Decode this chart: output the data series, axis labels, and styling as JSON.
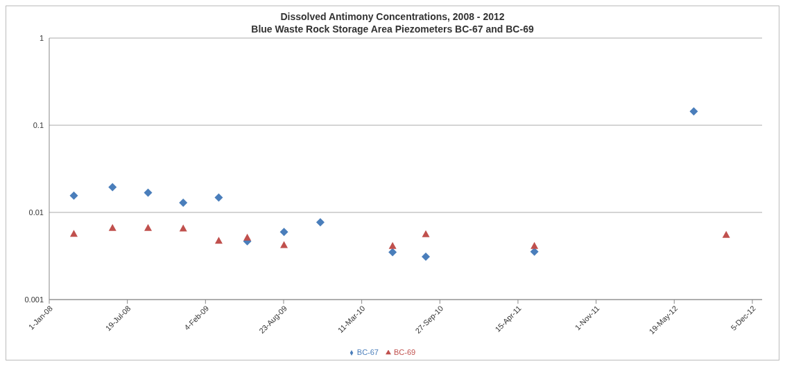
{
  "chart_data": {
    "type": "scatter",
    "title": "Dissolved Antimony Concentrations, 2008 - 2012",
    "subtitle": "Blue Waste Rock Storage Area Piezometers BC-67 and BC-69",
    "series": [
      {
        "name": "BC-67",
        "color": "#4a7ebb",
        "marker": "diamond",
        "x": [
          "2008-03-04",
          "2008-06-11",
          "2008-09-10",
          "2008-12-09",
          "2009-03-10",
          "2009-05-22",
          "2009-08-24",
          "2009-11-25",
          "2010-05-29",
          "2010-08-22",
          "2011-05-27",
          "2012-07-08"
        ],
        "values": [
          0.0156,
          0.0195,
          0.0168,
          0.0129,
          0.0148,
          0.00466,
          0.00596,
          0.0077,
          0.0035,
          0.0031,
          0.00355,
          0.144
        ]
      },
      {
        "name": "BC-69",
        "color": "#c0504d",
        "marker": "triangle",
        "x": [
          "2008-03-04",
          "2008-06-11",
          "2008-09-10",
          "2008-12-09",
          "2009-03-10",
          "2009-05-22",
          "2009-08-24",
          "2010-05-29",
          "2010-08-22",
          "2011-05-27",
          "2012-09-29"
        ],
        "values": [
          0.00565,
          0.0066,
          0.0066,
          0.0065,
          0.0047,
          0.0051,
          0.0042,
          0.0041,
          0.0056,
          0.0041,
          0.0055
        ]
      }
    ],
    "xlim": [
      "2008-01-01",
      "2012-12-30"
    ],
    "xticks": [
      {
        "value": "2008-01-01",
        "label": "1-Jan-08"
      },
      {
        "value": "2008-07-19",
        "label": "19-Jul-08"
      },
      {
        "value": "2009-02-04",
        "label": "4-Feb-09"
      },
      {
        "value": "2009-08-23",
        "label": "23-Aug-09"
      },
      {
        "value": "2010-03-11",
        "label": "11-Mar-10"
      },
      {
        "value": "2010-09-27",
        "label": "27-Sep-10"
      },
      {
        "value": "2011-04-15",
        "label": "15-Apr-11"
      },
      {
        "value": "2011-11-01",
        "label": "1-Nov-11"
      },
      {
        "value": "2012-05-19",
        "label": "19-May-12"
      },
      {
        "value": "2012-12-05",
        "label": "5-Dec-12"
      }
    ],
    "ylim": [
      0.001,
      1
    ],
    "yticks": [
      0.001,
      0.01,
      0.1,
      1
    ],
    "log": "y",
    "grid": "y",
    "legend": "bottom"
  }
}
